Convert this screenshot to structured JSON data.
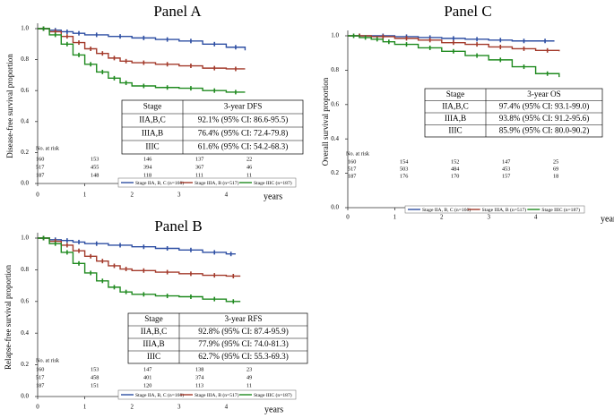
{
  "chart_data": [
    {
      "type": "line",
      "title": "Panel A",
      "ylabel": "Disease-free survival proportion",
      "xlabel": "years",
      "xlim": [
        0,
        5
      ],
      "ylim": [
        0,
        1
      ],
      "xticks": [
        "0",
        "1",
        "2",
        "3",
        "4"
      ],
      "yticks": [
        "0.0",
        "0.2",
        "0.4",
        "0.6",
        "0.8",
        "1.0"
      ],
      "series": [
        {
          "name": "Stage IIA, B, C (n=160)",
          "color": "#2e4fa3",
          "x": [
            0,
            0.25,
            0.5,
            0.75,
            1.0,
            1.5,
            2.0,
            2.5,
            3.0,
            3.5,
            4.0,
            4.4
          ],
          "y": [
            1.0,
            0.99,
            0.98,
            0.97,
            0.96,
            0.95,
            0.94,
            0.93,
            0.92,
            0.9,
            0.88,
            0.86
          ]
        },
        {
          "name": "Stage IIIA, B (n=517)",
          "color": "#a33a2b",
          "x": [
            0,
            0.25,
            0.5,
            0.75,
            1.0,
            1.25,
            1.5,
            1.75,
            2.0,
            2.5,
            3.0,
            3.5,
            4.0,
            4.4
          ],
          "y": [
            1.0,
            0.98,
            0.95,
            0.91,
            0.87,
            0.84,
            0.81,
            0.79,
            0.78,
            0.77,
            0.76,
            0.745,
            0.74,
            0.74
          ]
        },
        {
          "name": "Stage IIIC (n=187)",
          "color": "#1f8a1f",
          "x": [
            0,
            0.25,
            0.5,
            0.75,
            1.0,
            1.25,
            1.5,
            1.75,
            2.0,
            2.5,
            3.0,
            3.5,
            4.0,
            4.4
          ],
          "y": [
            1.0,
            0.96,
            0.9,
            0.83,
            0.77,
            0.72,
            0.68,
            0.65,
            0.63,
            0.62,
            0.615,
            0.6,
            0.59,
            0.59
          ]
        }
      ],
      "table": {
        "headers": [
          "Stage",
          "3-year DFS"
        ],
        "rows": [
          [
            "IIA,B,C",
            "92.1% (95% CI: 86.6-95.5)"
          ],
          [
            "IIIA,B",
            "76.4% (95% CI: 72.4-79.8)"
          ],
          [
            "IIIC",
            "61.6% (95% CI: 54.2-68.3)"
          ]
        ]
      },
      "at_risk": {
        "label": "No. at risk",
        "rows": [
          [
            "160",
            "153",
            "146",
            "137",
            "22"
          ],
          [
            "517",
            "455",
            "394",
            "367",
            "46"
          ],
          [
            "187",
            "148",
            "118",
            "111",
            "11"
          ]
        ]
      }
    },
    {
      "type": "line",
      "title": "Panel B",
      "ylabel": "Relapse-free survival proportion",
      "xlabel": "years",
      "xlim": [
        0,
        5
      ],
      "ylim": [
        0,
        1
      ],
      "xticks": [
        "0",
        "1",
        "2",
        "3",
        "4"
      ],
      "yticks": [
        "0.0",
        "0.2",
        "0.4",
        "0.6",
        "0.8",
        "1.0"
      ],
      "series": [
        {
          "name": "Stage IIA, B, C (n=160)",
          "color": "#2e4fa3",
          "x": [
            0,
            0.25,
            0.5,
            0.75,
            1.0,
            1.5,
            2.0,
            2.5,
            3.0,
            3.5,
            4.0,
            4.2
          ],
          "y": [
            1.0,
            0.99,
            0.985,
            0.975,
            0.965,
            0.955,
            0.945,
            0.935,
            0.925,
            0.91,
            0.9,
            0.9
          ]
        },
        {
          "name": "Stage IIIA, B (n=517)",
          "color": "#a33a2b",
          "x": [
            0,
            0.25,
            0.5,
            0.75,
            1.0,
            1.25,
            1.5,
            1.75,
            2.0,
            2.5,
            3.0,
            3.5,
            4.0,
            4.3
          ],
          "y": [
            1.0,
            0.98,
            0.955,
            0.92,
            0.885,
            0.855,
            0.825,
            0.805,
            0.795,
            0.785,
            0.775,
            0.765,
            0.76,
            0.76
          ]
        },
        {
          "name": "Stage IIIC (n=187)",
          "color": "#1f8a1f",
          "x": [
            0,
            0.25,
            0.5,
            0.75,
            1.0,
            1.25,
            1.5,
            1.75,
            2.0,
            2.5,
            3.0,
            3.5,
            4.0,
            4.3
          ],
          "y": [
            1.0,
            0.965,
            0.91,
            0.84,
            0.78,
            0.73,
            0.69,
            0.66,
            0.645,
            0.635,
            0.63,
            0.615,
            0.6,
            0.6
          ]
        }
      ],
      "table": {
        "headers": [
          "Stage",
          "3-year RFS"
        ],
        "rows": [
          [
            "IIA,B,C",
            "92.8% (95% CI: 87.4-95.9)"
          ],
          [
            "IIIA,B",
            "77.9% (95% CI: 74.0-81.3)"
          ],
          [
            "IIIC",
            "62.7% (95% CI: 55.3-69.3)"
          ]
        ]
      },
      "at_risk": {
        "label": "No. at risk",
        "rows": [
          [
            "160",
            "153",
            "147",
            "138",
            "23"
          ],
          [
            "517",
            "458",
            "401",
            "374",
            "49"
          ],
          [
            "187",
            "151",
            "120",
            "113",
            "11"
          ]
        ]
      }
    },
    {
      "type": "line",
      "title": "Panel C",
      "ylabel": "Overall survival proportion",
      "xlabel": "years",
      "xlim": [
        0,
        5
      ],
      "ylim": [
        0,
        1
      ],
      "xticks": [
        "0",
        "1",
        "2",
        "3",
        "4"
      ],
      "yticks": [
        "0.0",
        "0.2",
        "0.4",
        "0.6",
        "0.8",
        "1.0"
      ],
      "series": [
        {
          "name": "Stage IIA, B, C (n=160)",
          "color": "#2e4fa3",
          "x": [
            0,
            0.5,
            1.0,
            1.5,
            2.0,
            2.5,
            3.0,
            3.5,
            4.0,
            4.4
          ],
          "y": [
            1.0,
            1.0,
            0.995,
            0.99,
            0.985,
            0.98,
            0.975,
            0.97,
            0.97,
            0.97
          ]
        },
        {
          "name": "Stage IIIA, B (n=517)",
          "color": "#a33a2b",
          "x": [
            0,
            0.5,
            1.0,
            1.5,
            2.0,
            2.5,
            3.0,
            3.5,
            4.0,
            4.5
          ],
          "y": [
            1.0,
            0.995,
            0.985,
            0.975,
            0.96,
            0.95,
            0.935,
            0.925,
            0.915,
            0.91
          ]
        },
        {
          "name": "Stage IIIC (n=187)",
          "color": "#1f8a1f",
          "x": [
            0,
            0.25,
            0.5,
            0.75,
            1.0,
            1.5,
            2.0,
            2.5,
            3.0,
            3.5,
            4.0,
            4.5
          ],
          "y": [
            1.0,
            0.99,
            0.98,
            0.965,
            0.95,
            0.93,
            0.91,
            0.885,
            0.86,
            0.82,
            0.78,
            0.76
          ]
        }
      ],
      "table": {
        "headers": [
          "Stage",
          "3-year OS"
        ],
        "rows": [
          [
            "IIA,B,C",
            "97.4% (95% CI: 93.1-99.0)"
          ],
          [
            "IIIA,B",
            "93.8% (95% CI: 91.2-95.6)"
          ],
          [
            "IIIC",
            "85.9% (95% CI: 80.0-90.2)"
          ]
        ]
      },
      "at_risk": {
        "label": "No. at risk",
        "rows": [
          [
            "160",
            "154",
            "152",
            "147",
            "25"
          ],
          [
            "517",
            "503",
            "484",
            "453",
            "69"
          ],
          [
            "187",
            "176",
            "170",
            "157",
            "18"
          ]
        ]
      }
    }
  ]
}
